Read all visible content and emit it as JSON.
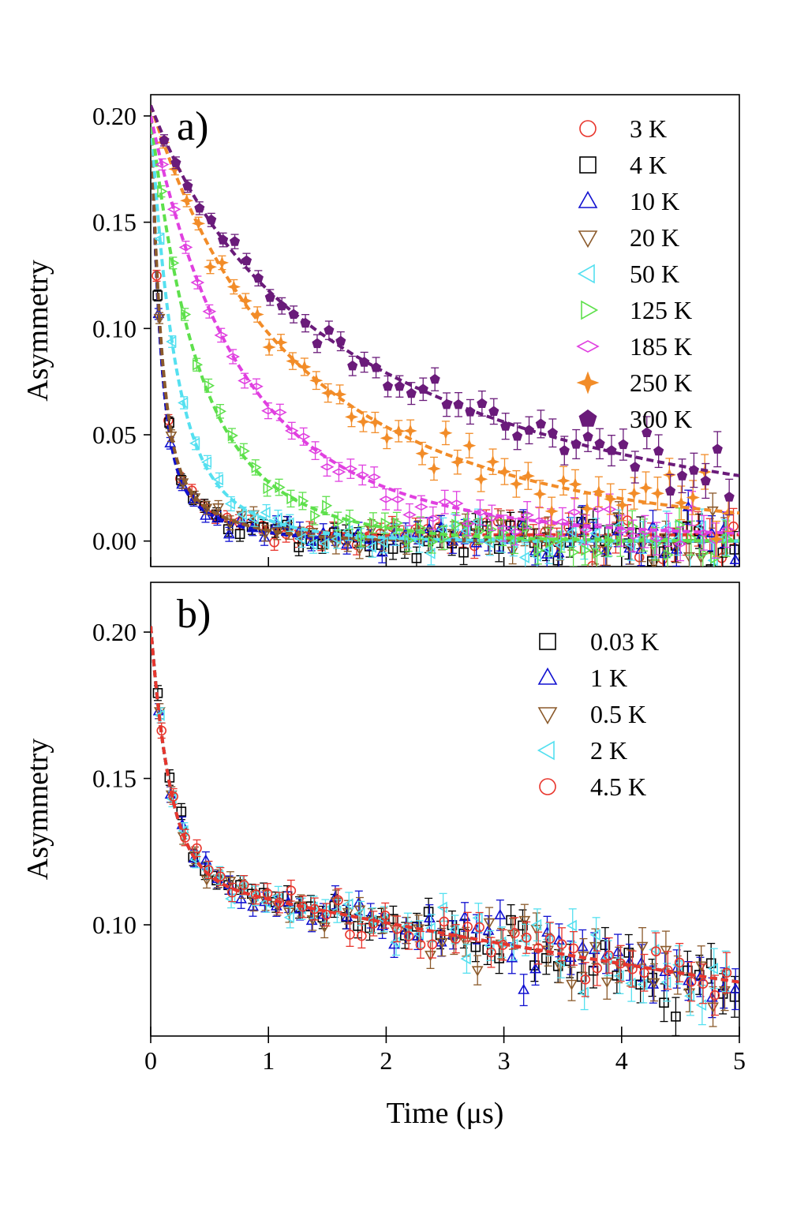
{
  "chart_data": [
    {
      "id": "a",
      "type": "scatter",
      "panel_label": "a)",
      "ylabel": "Asymmetry",
      "xlabel": "",
      "xlim": [
        0,
        5
      ],
      "ylim": [
        -0.012,
        0.21
      ],
      "yticks": [
        0.0,
        0.05,
        0.1,
        0.15,
        0.2
      ],
      "ytick_labels": [
        "0.00",
        "0.05",
        "0.10",
        "0.15",
        "0.20"
      ],
      "xticks": [
        0,
        1,
        2,
        3,
        4,
        5
      ],
      "legend_position": "top-right",
      "series": [
        {
          "name": "3 K",
          "marker": "circle",
          "filled": false,
          "color": "#e8352c",
          "a0": 0.205,
          "fast_rate": 12.0,
          "fast_frac": 0.82,
          "slow_rate": 2.2,
          "tail": 0.003
        },
        {
          "name": "4 K",
          "marker": "square",
          "filled": false,
          "color": "#000000",
          "a0": 0.205,
          "fast_rate": 12.0,
          "fast_frac": 0.82,
          "slow_rate": 2.2,
          "tail": 0.0
        },
        {
          "name": "10 K",
          "marker": "triangle-up",
          "filled": false,
          "color": "#1010d0",
          "a0": 0.205,
          "fast_rate": 12.0,
          "fast_frac": 0.82,
          "slow_rate": 2.2,
          "tail": 0.0
        },
        {
          "name": "20 K",
          "marker": "triangle-down",
          "filled": false,
          "color": "#8b5a2b",
          "a0": 0.205,
          "fast_rate": 11.5,
          "fast_frac": 0.8,
          "slow_rate": 2.1,
          "tail": 0.0
        },
        {
          "name": "50 K",
          "marker": "triangle-left",
          "filled": false,
          "color": "#55e0f0",
          "a0": 0.2,
          "fast_rate": 5.5,
          "fast_frac": 0.72,
          "slow_rate": 1.8,
          "tail": 0.0
        },
        {
          "name": "125 K",
          "marker": "triangle-right",
          "filled": false,
          "color": "#5ee04c",
          "a0": 0.2,
          "fast_rate": 3.2,
          "fast_frac": 0.55,
          "slow_rate": 1.35,
          "tail": 0.0
        },
        {
          "name": "185 K",
          "marker": "diamond",
          "filled": false,
          "color": "#e040e0",
          "a0": 0.2,
          "fast_rate": 2.0,
          "fast_frac": 0.4,
          "slow_rate": 0.85,
          "tail": 0.002
        },
        {
          "name": "250 K",
          "marker": "star4",
          "filled": true,
          "color": "#f28c28",
          "a0": 0.205,
          "fast_rate": 1.6,
          "fast_frac": 0.3,
          "slow_rate": 0.55,
          "tail": 0.004
        },
        {
          "name": "300 K",
          "marker": "pentagon",
          "filled": true,
          "color": "#6a1b7a",
          "a0": 0.205,
          "fast_rate": 1.8,
          "fast_frac": 0.25,
          "slow_rate": 0.4,
          "tail": 0.01
        }
      ]
    },
    {
      "id": "b",
      "type": "scatter",
      "panel_label": "b)",
      "ylabel": "Asymmetry",
      "xlabel": "Time (μs)",
      "xlim": [
        0,
        5
      ],
      "ylim": [
        0.062,
        0.217
      ],
      "yticks": [
        0.1,
        0.15,
        0.2
      ],
      "ytick_labels": [
        "0.10",
        "0.15",
        "0.20"
      ],
      "xticks": [
        0,
        1,
        2,
        3,
        4,
        5
      ],
      "xtick_labels": [
        "0",
        "1",
        "2",
        "3",
        "4",
        "5"
      ],
      "legend_position": "top-right",
      "series": [
        {
          "name": "0.03 K",
          "marker": "square",
          "filled": false,
          "color": "#000000"
        },
        {
          "name": "1 K",
          "marker": "triangle-up",
          "filled": false,
          "color": "#1010d0"
        },
        {
          "name": "0.5 K",
          "marker": "triangle-down",
          "filled": false,
          "color": "#8b5a2b"
        },
        {
          "name": "2 K",
          "marker": "triangle-left",
          "filled": false,
          "color": "#55e0f0"
        },
        {
          "name": "4.5 K",
          "marker": "circle",
          "filled": false,
          "color": "#e8352c"
        }
      ],
      "fit": {
        "a_fast": 0.085,
        "fast_rate": 6.0,
        "a_slow": 0.117,
        "slow_rate": 0.075
      }
    }
  ]
}
